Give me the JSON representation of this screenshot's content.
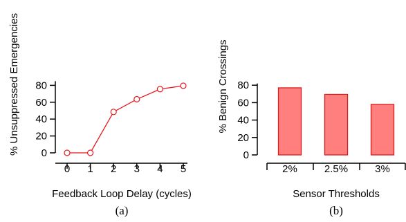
{
  "chart_data": [
    {
      "type": "line",
      "xlabel": "Feedback Loop Delay (cycles)",
      "ylabel": "% Unsuppressed Emergencies",
      "caption": "(a)",
      "x": [
        0,
        1,
        2,
        3,
        4,
        5
      ],
      "series": [
        {
          "values": [
            0,
            0,
            48.5,
            63.5,
            75.5,
            79.5
          ]
        }
      ],
      "yticks": [
        0,
        20,
        40,
        60,
        80
      ],
      "ylim": [
        0,
        85
      ],
      "xlim": [
        0,
        5
      ],
      "color": "#e8161b",
      "grid": false
    },
    {
      "type": "bar",
      "xlabel": "Sensor Thresholds",
      "ylabel": "% Benign Crossings",
      "caption": "(b)",
      "categories": [
        "2%",
        "2.5%",
        "3%"
      ],
      "values": [
        77,
        69.5,
        58
      ],
      "yticks": [
        0,
        20,
        40,
        60,
        80
      ],
      "ylim": [
        0,
        82
      ],
      "bar_fill": "#ff7f7f",
      "bar_stroke": "#d81c1c",
      "grid": false
    }
  ]
}
